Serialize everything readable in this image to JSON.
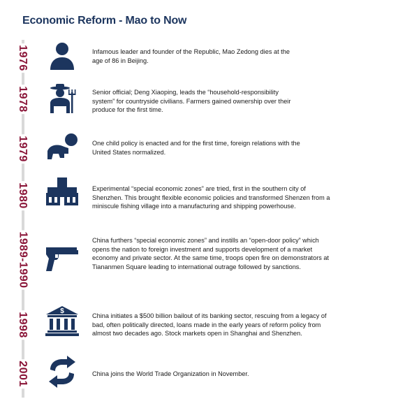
{
  "title": "Economic Reform - Mao to Now",
  "colors": {
    "title": "#1c355e",
    "icon": "#1c355e",
    "year": "#8a1538",
    "line": "#d9d9d9"
  },
  "events": [
    {
      "year": "1976",
      "icon": "person-icon",
      "text": "Infamous leader and founder of the Republic, Mao Zedong dies at the age of 86 in Beijing."
    },
    {
      "year": "1978",
      "icon": "farmer-icon",
      "text": "Senior official; Deng Xiaoping, leads the “household-responsibility system” for countryside civilians. Farmers gained ownership over their produce for the first time."
    },
    {
      "year": "1979",
      "icon": "crawling-baby-icon",
      "text": "One child policy is enacted and for the first time, foreign relations with the United States normalized."
    },
    {
      "year": "1980",
      "icon": "factory-building-icon",
      "text": "Experimental “special economic zones” are tried, first in the southern city of Shenzhen. This brought flexible economic policies and transformed Shenzen from a miniscule fishing village into a manufacturing and shipping powerhouse."
    },
    {
      "year": "1989-1990",
      "icon": "pistol-icon",
      "text": "China furthers “special economic zones” and instills an “open-door policy” which opens the nation to foreign investment and supports development of a market economy and private sector. At the same time, troops open fire on demonstrators at Tiananmen Square leading to international outrage followed by sanctions."
    },
    {
      "year": "1998",
      "icon": "bank-icon",
      "text": "China initiates a $500 billion bailout of its banking sector, rescuing from a legacy of bad, often politically directed, loans made in the early years of reform policy from almost two decades ago. Stock markets open in Shanghai and Shenzhen."
    },
    {
      "year": "2001",
      "icon": "exchange-arrows-icon",
      "text": "China joins the World Trade Organization in November."
    }
  ]
}
